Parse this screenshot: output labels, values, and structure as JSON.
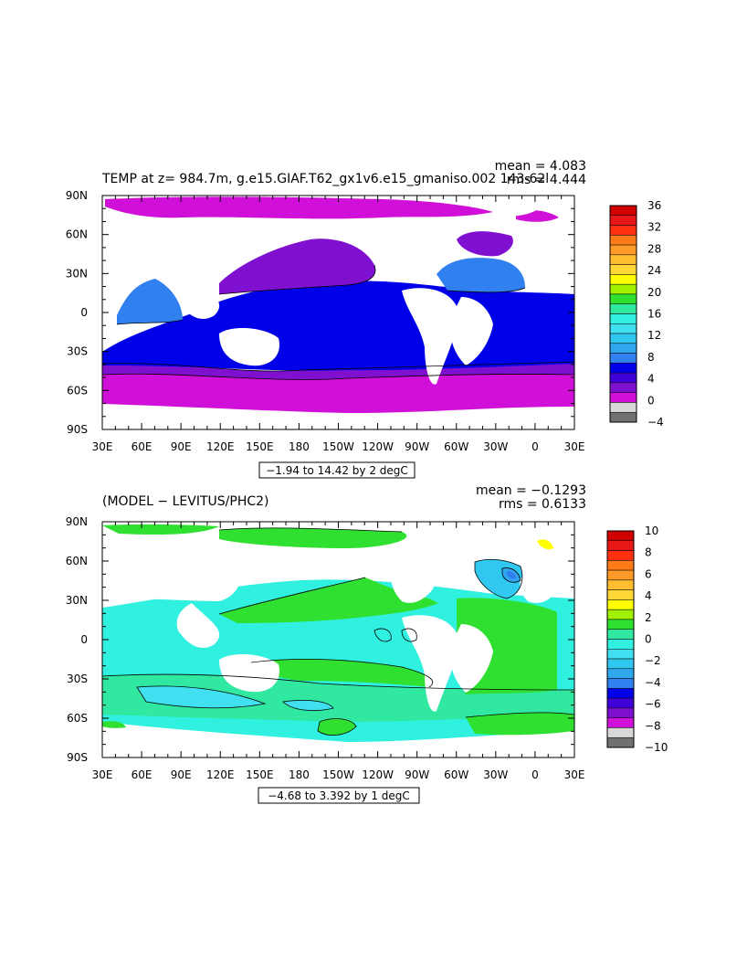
{
  "chart_data": [
    {
      "type": "heatmap",
      "title": "TEMP at z= 984.7m, g.e15.GIAF.T62_gx1v6.e15_gmaniso.002 143-62l",
      "stats": {
        "mean": "mean = 4.083",
        "rms": "rms = 4.444"
      },
      "x_ticks": [
        "30E",
        "60E",
        "90E",
        "120E",
        "150E",
        "180",
        "150W",
        "120W",
        "90W",
        "60W",
        "30W",
        "0",
        "30E"
      ],
      "y_ticks": [
        "90N",
        "60N",
        "30N",
        "0",
        "30S",
        "60S",
        "90S"
      ],
      "range_label": "−1.94 to 14.42 by 2 degC",
      "colorbar": {
        "labels": [
          "36",
          "32",
          "28",
          "24",
          "20",
          "16",
          "12",
          "8",
          "4",
          "0",
          "−4"
        ],
        "colors": [
          "#d00000",
          "#e81818",
          "#ff3010",
          "#ff7a18",
          "#ff9a28",
          "#ffbe30",
          "#ffd838",
          "#ffff00",
          "#a0f000",
          "#30e030",
          "#30e8a0",
          "#30f0e0",
          "#40e0f0",
          "#30c8f0",
          "#30a8f0",
          "#3080f0",
          "#0000e8",
          "#4000d8",
          "#8010d0",
          "#d010d8",
          "#d8d8d8",
          "#707070"
        ],
        "units": "degC"
      }
    },
    {
      "type": "heatmap",
      "title": "(MODEL − LEVITUS/PHC2)",
      "stats": {
        "mean": "mean = −0.1293",
        "rms": "rms = 0.6133"
      },
      "x_ticks": [
        "30E",
        "60E",
        "90E",
        "120E",
        "150E",
        "180",
        "150W",
        "120W",
        "90W",
        "60W",
        "30W",
        "0",
        "30E"
      ],
      "y_ticks": [
        "90N",
        "60N",
        "30N",
        "0",
        "30S",
        "60S",
        "90S"
      ],
      "range_label": "−4.68 to 3.392 by 1 degC",
      "colorbar": {
        "labels": [
          "10",
          "8",
          "6",
          "4",
          "2",
          "0",
          "−2",
          "−4",
          "−6",
          "−8",
          "−10"
        ],
        "colors": [
          "#d00000",
          "#e81818",
          "#ff3010",
          "#ff7a18",
          "#ff9a28",
          "#ffbe30",
          "#ffd838",
          "#ffff00",
          "#a0f000",
          "#30e030",
          "#30e8a0",
          "#30f0e0",
          "#40e0f0",
          "#30c8f0",
          "#30a8f0",
          "#3080f0",
          "#0000e8",
          "#4000d8",
          "#8010d0",
          "#d010d8",
          "#d8d8d8",
          "#707070"
        ],
        "units": "degC"
      }
    }
  ]
}
